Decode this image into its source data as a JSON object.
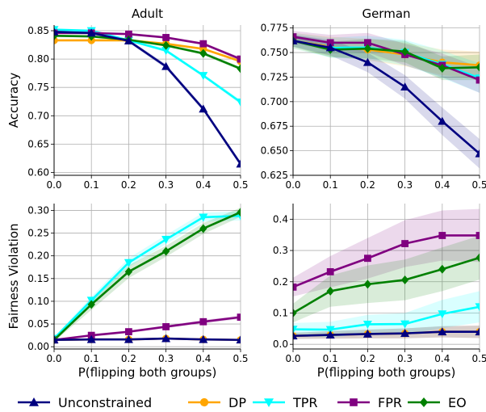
{
  "colors": {
    "Unconstrained": "#000080",
    "DP": "#ffa500",
    "TPR": "#00ffff",
    "FPR": "#800080",
    "EO": "#008000"
  },
  "ylabels": {
    "top": "Accuracy",
    "bottom": "Fairness Violation"
  },
  "xlabel": "P(flipping both groups)",
  "legend": {
    "placement": "bottom",
    "entries": [
      {
        "name": "Unconstrained",
        "marker": "triangle-up"
      },
      {
        "name": "DP",
        "marker": "circle"
      },
      {
        "name": "TPR",
        "marker": "triangle-down"
      },
      {
        "name": "FPR",
        "marker": "square"
      },
      {
        "name": "EO",
        "marker": "diamond"
      }
    ]
  },
  "chart_data": [
    {
      "type": "line",
      "title": "Adult",
      "ylabel": "Accuracy",
      "xlabel": "",
      "x": [
        0,
        0.1,
        0.2,
        0.3,
        0.4,
        0.5
      ],
      "xlim": [
        0,
        0.5
      ],
      "xticks": [
        "0.0",
        "0.1",
        "0.2",
        "0.3",
        "0.4",
        "0.5"
      ],
      "ylim": [
        0.595,
        0.86
      ],
      "yticks": [
        "0.60",
        "0.65",
        "0.70",
        "0.75",
        "0.80",
        "0.85"
      ],
      "grid": true,
      "series": [
        {
          "name": "Unconstrained",
          "marker": "triangle-up",
          "values": [
            0.848,
            0.846,
            0.832,
            0.787,
            0.712,
            0.615
          ],
          "band": [
            0.003,
            0.003,
            0.003,
            0.004,
            0.004,
            0.004
          ]
        },
        {
          "name": "DP",
          "marker": "circle",
          "values": [
            0.833,
            0.833,
            0.833,
            0.827,
            0.818,
            0.796
          ],
          "band": [
            0.002,
            0.002,
            0.002,
            0.002,
            0.002,
            0.003
          ]
        },
        {
          "name": "TPR",
          "marker": "triangle-down",
          "values": [
            0.852,
            0.85,
            0.833,
            0.815,
            0.771,
            0.724
          ],
          "band": [
            0.002,
            0.002,
            0.002,
            0.003,
            0.003,
            0.004
          ]
        },
        {
          "name": "FPR",
          "marker": "square",
          "values": [
            0.846,
            0.846,
            0.844,
            0.838,
            0.827,
            0.8
          ],
          "band": [
            0.002,
            0.002,
            0.002,
            0.002,
            0.002,
            0.003
          ]
        },
        {
          "name": "EO",
          "marker": "diamond",
          "values": [
            0.841,
            0.84,
            0.834,
            0.824,
            0.81,
            0.783
          ],
          "band": [
            0.002,
            0.002,
            0.002,
            0.002,
            0.003,
            0.003
          ]
        }
      ]
    },
    {
      "type": "line",
      "title": "German",
      "ylabel": "",
      "xlabel": "",
      "x": [
        0,
        0.1,
        0.2,
        0.3,
        0.4,
        0.5
      ],
      "xlim": [
        0,
        0.5
      ],
      "xticks": [
        "0.0",
        "0.1",
        "0.2",
        "0.3",
        "0.4",
        "0.5"
      ],
      "ylim": [
        0.625,
        0.778
      ],
      "yticks": [
        "0.625",
        "0.650",
        "0.675",
        "0.700",
        "0.725",
        "0.750",
        "0.775"
      ],
      "grid": true,
      "series": [
        {
          "name": "Unconstrained",
          "marker": "triangle-up",
          "values": [
            0.762,
            0.755,
            0.74,
            0.715,
            0.68,
            0.647
          ],
          "band": [
            0.006,
            0.008,
            0.01,
            0.012,
            0.014,
            0.015
          ]
        },
        {
          "name": "DP",
          "marker": "circle",
          "values": [
            0.762,
            0.756,
            0.753,
            0.748,
            0.74,
            0.737
          ],
          "band": [
            0.008,
            0.01,
            0.011,
            0.012,
            0.013,
            0.014
          ]
        },
        {
          "name": "TPR",
          "marker": "triangle-down",
          "values": [
            0.762,
            0.755,
            0.755,
            0.75,
            0.738,
            0.724
          ],
          "band": [
            0.008,
            0.01,
            0.012,
            0.013,
            0.014,
            0.015
          ]
        },
        {
          "name": "FPR",
          "marker": "square",
          "values": [
            0.766,
            0.76,
            0.76,
            0.748,
            0.737,
            0.722
          ],
          "band": [
            0.006,
            0.008,
            0.01,
            0.011,
            0.012,
            0.013
          ]
        },
        {
          "name": "EO",
          "marker": "diamond",
          "values": [
            0.762,
            0.753,
            0.754,
            0.751,
            0.734,
            0.735
          ],
          "band": [
            0.006,
            0.008,
            0.01,
            0.011,
            0.012,
            0.013
          ]
        }
      ]
    },
    {
      "type": "line",
      "title": "",
      "ylabel": "Fairness Violation",
      "xlabel": "P(flipping both groups)",
      "x": [
        0,
        0.1,
        0.2,
        0.3,
        0.4,
        0.5
      ],
      "xlim": [
        0,
        0.5
      ],
      "xticks": [
        "0.0",
        "0.1",
        "0.2",
        "0.3",
        "0.4",
        "0.5"
      ],
      "ylim": [
        -0.005,
        0.315
      ],
      "yticks": [
        "0.00",
        "0.05",
        "0.10",
        "0.15",
        "0.20",
        "0.25",
        "0.30"
      ],
      "grid": true,
      "series": [
        {
          "name": "Unconstrained",
          "marker": "triangle-up",
          "values": [
            0.015,
            0.016,
            0.016,
            0.018,
            0.016,
            0.015
          ],
          "band": [
            0.002,
            0.002,
            0.002,
            0.002,
            0.002,
            0.002
          ]
        },
        {
          "name": "DP",
          "marker": "circle",
          "values": [
            0.015,
            0.016,
            0.016,
            0.018,
            0.016,
            0.015
          ],
          "band": [
            0.002,
            0.002,
            0.002,
            0.002,
            0.002,
            0.002
          ]
        },
        {
          "name": "TPR",
          "marker": "triangle-down",
          "values": [
            0.018,
            0.102,
            0.185,
            0.236,
            0.285,
            0.288
          ],
          "band": [
            0.004,
            0.008,
            0.01,
            0.01,
            0.01,
            0.01
          ]
        },
        {
          "name": "FPR",
          "marker": "square",
          "values": [
            0.015,
            0.025,
            0.033,
            0.044,
            0.055,
            0.065
          ],
          "band": [
            0.002,
            0.003,
            0.003,
            0.003,
            0.004,
            0.004
          ]
        },
        {
          "name": "EO",
          "marker": "diamond",
          "values": [
            0.015,
            0.093,
            0.165,
            0.21,
            0.26,
            0.296
          ],
          "band": [
            0.004,
            0.012,
            0.014,
            0.012,
            0.012,
            0.01
          ]
        }
      ]
    },
    {
      "type": "line",
      "title": "",
      "ylabel": "",
      "xlabel": "P(flipping both groups)",
      "x": [
        0,
        0.1,
        0.2,
        0.3,
        0.4,
        0.5
      ],
      "xlim": [
        0,
        0.5
      ],
      "xticks": [
        "0.0",
        "0.1",
        "0.2",
        "0.3",
        "0.4",
        "0.5"
      ],
      "ylim": [
        -0.015,
        0.45
      ],
      "yticks": [
        "0.0",
        "0.1",
        "0.2",
        "0.3",
        "0.4"
      ],
      "grid": true,
      "series": [
        {
          "name": "Unconstrained",
          "marker": "triangle-up",
          "values": [
            0.027,
            0.03,
            0.033,
            0.035,
            0.04,
            0.04
          ],
          "band": [
            0.01,
            0.012,
            0.014,
            0.016,
            0.018,
            0.02
          ]
        },
        {
          "name": "DP",
          "marker": "circle",
          "values": [
            0.027,
            0.03,
            0.033,
            0.035,
            0.04,
            0.04
          ],
          "band": [
            0.01,
            0.012,
            0.014,
            0.016,
            0.018,
            0.02
          ]
        },
        {
          "name": "TPR",
          "marker": "triangle-down",
          "values": [
            0.048,
            0.047,
            0.064,
            0.065,
            0.097,
            0.12
          ],
          "band": [
            0.02,
            0.025,
            0.03,
            0.035,
            0.045,
            0.05
          ]
        },
        {
          "name": "FPR",
          "marker": "square",
          "values": [
            0.183,
            0.232,
            0.275,
            0.322,
            0.348,
            0.348
          ],
          "band": [
            0.03,
            0.05,
            0.065,
            0.075,
            0.08,
            0.085
          ]
        },
        {
          "name": "EO",
          "marker": "diamond",
          "values": [
            0.1,
            0.17,
            0.192,
            0.206,
            0.24,
            0.277
          ],
          "band": [
            0.03,
            0.05,
            0.06,
            0.065,
            0.07,
            0.07
          ]
        }
      ]
    }
  ]
}
